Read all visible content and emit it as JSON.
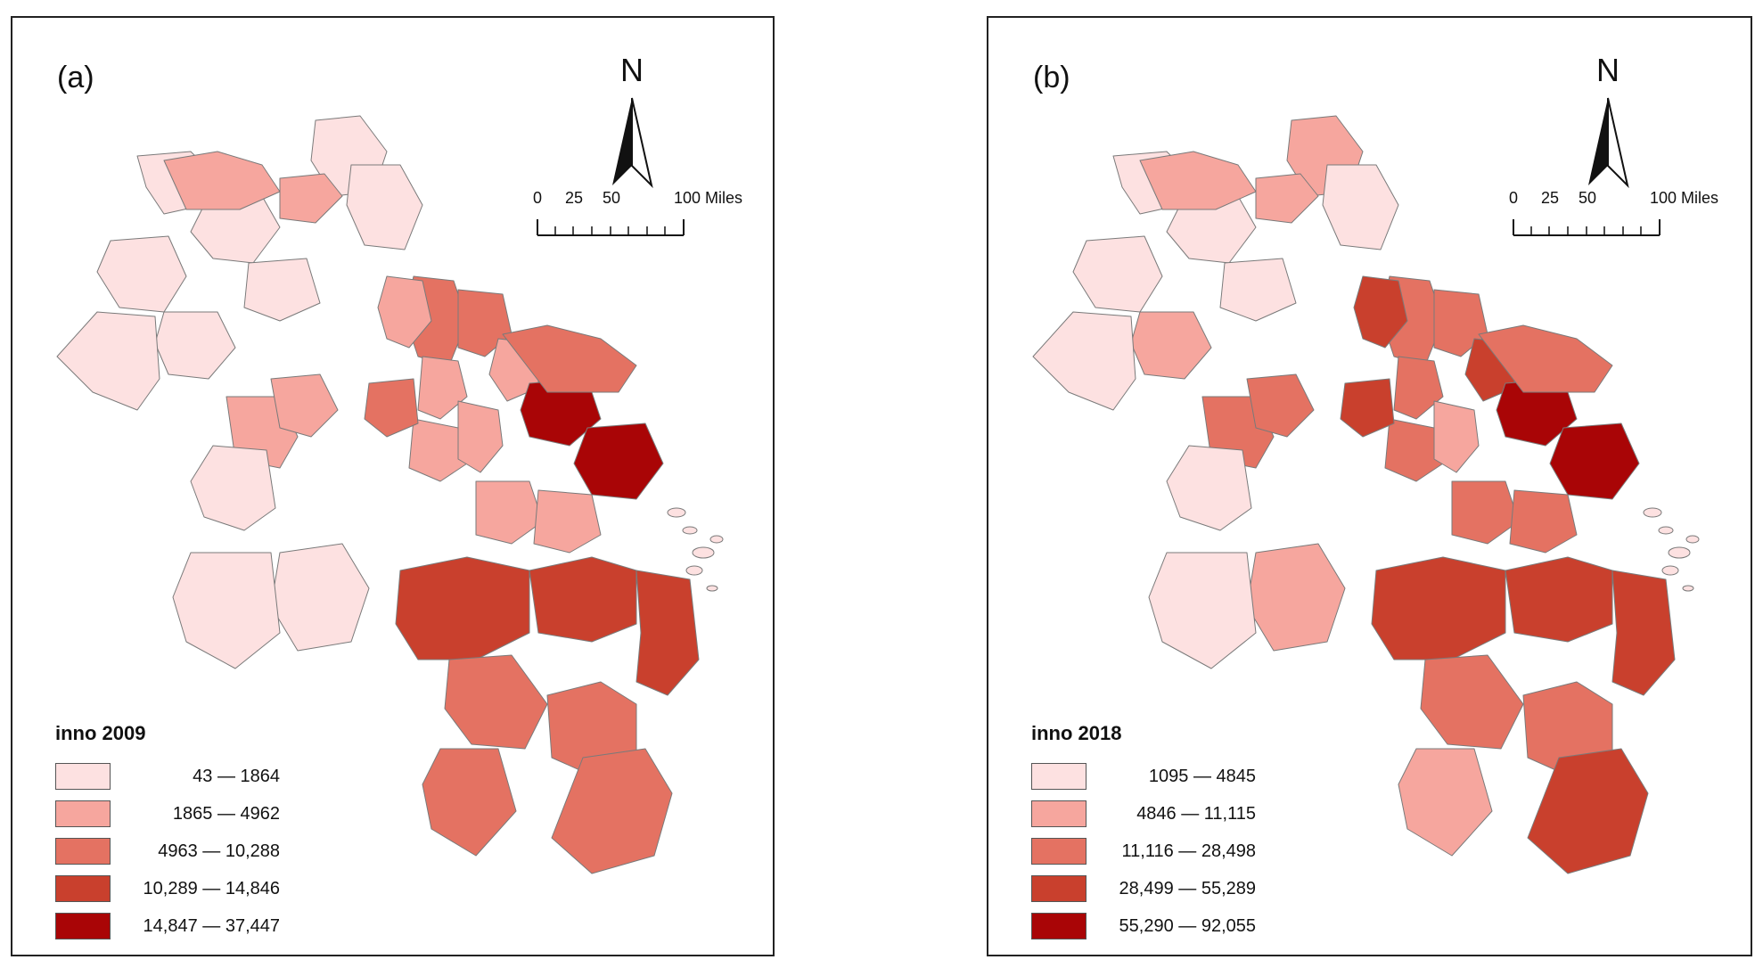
{
  "panels": [
    {
      "id": "a",
      "label": "(a)",
      "legend_title": "inno 2009",
      "classes": [
        {
          "label": "43 — 1864",
          "color": "#fde1e1"
        },
        {
          "label": "1865 — 4962",
          "color": "#f6a69e"
        },
        {
          "label": "4963 — 10,288",
          "color": "#e47262"
        },
        {
          "label": "10,289 — 14,846",
          "color": "#c9402d"
        },
        {
          "label": "14,847 — 37,447",
          "color": "#a90506"
        }
      ],
      "region_classes": [
        0,
        0,
        0,
        0,
        0,
        0,
        0,
        0,
        1,
        1,
        1,
        1,
        2,
        2,
        1,
        1,
        1,
        1,
        2,
        1,
        4,
        4,
        2,
        0,
        1,
        1,
        3,
        3,
        3,
        2,
        2,
        2,
        2,
        0,
        0
      ]
    },
    {
      "id": "b",
      "label": "(b)",
      "legend_title": "inno 2018",
      "classes": [
        {
          "label": "1095 — 4845",
          "color": "#fde1e1"
        },
        {
          "label": "4846 — 11,115",
          "color": "#f6a69e"
        },
        {
          "label": "11,116 — 28,498",
          "color": "#e47262"
        },
        {
          "label": "28,499 — 55,289",
          "color": "#c9402d"
        },
        {
          "label": "55,290 — 92,055",
          "color": "#a90506"
        }
      ],
      "region_classes": [
        0,
        0,
        0,
        1,
        1,
        0,
        0,
        0,
        1,
        1,
        2,
        2,
        2,
        2,
        3,
        2,
        2,
        1,
        3,
        3,
        4,
        4,
        2,
        0,
        2,
        2,
        3,
        3,
        3,
        2,
        2,
        3,
        1,
        1,
        0
      ]
    }
  ],
  "north_label": "N",
  "scale": {
    "ticks": [
      "0",
      "25",
      "50",
      "100 Miles"
    ],
    "tick_values": [
      0,
      25,
      50,
      100
    ]
  }
}
